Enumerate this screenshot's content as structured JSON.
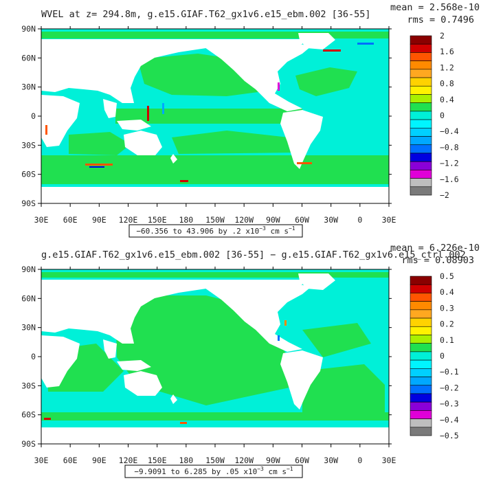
{
  "colors": {
    "land": "#ffffff",
    "frame": "#000000",
    "ocean_main": "#00f0d8",
    "ocean_pos": "#20e050"
  },
  "chart_data": [
    {
      "type": "heatmap",
      "title": "WVEL at z= 294.8m, g.e15.GIAF.T62_gx1v6.e15_ebm.002 [36-55]",
      "mean_text": "mean = 2.568e-10",
      "rms_text": "rms = 0.7496",
      "range_text": "−60.356 to 43.906 by .2 x10",
      "range_exp": "−3",
      "range_unit": " cm s",
      "range_unit_exp": "−1",
      "x_ticks": [
        "30E",
        "60E",
        "90E",
        "120E",
        "150E",
        "180",
        "150W",
        "120W",
        "90W",
        "60W",
        "30W",
        "0",
        "30E"
      ],
      "y_ticks": [
        "90N",
        "60N",
        "30N",
        "0",
        "30S",
        "60S",
        "90S"
      ],
      "colorbar_labels": [
        "2",
        "1.6",
        "1.2",
        "0.8",
        "0.4",
        "0",
        "−0.4",
        "−0.8",
        "−1.2",
        "−1.6",
        "−2"
      ],
      "colorbar_colors": [
        "#8a0000",
        "#d00000",
        "#ff5500",
        "#ff8a00",
        "#ffa820",
        "#ffd200",
        "#fff200",
        "#a8f000",
        "#20e050",
        "#00f0d8",
        "#00f5ff",
        "#00d0ff",
        "#00a8ff",
        "#0070ff",
        "#0000e0",
        "#8a00d8",
        "#e000d8",
        "#bebebe",
        "#7a7a7a"
      ]
    },
    {
      "type": "heatmap",
      "title": "g.e15.GIAF.T62_gx1v6.e15_ebm.002 [36-55] − g.e15.GIAF.T62_gx1v6.e15_ctrl.002",
      "mean_text": "mean = 6.226e-10",
      "rms_text": "rms = 0.08903",
      "range_text": "−9.9091 to 6.285 by .05 x10",
      "range_exp": "−3",
      "range_unit": " cm s",
      "range_unit_exp": "−1",
      "x_ticks": [
        "30E",
        "60E",
        "90E",
        "120E",
        "150E",
        "180",
        "150W",
        "120W",
        "90W",
        "60W",
        "30W",
        "0",
        "30E"
      ],
      "y_ticks": [
        "90N",
        "60N",
        "30N",
        "0",
        "30S",
        "60S",
        "90S"
      ],
      "colorbar_labels": [
        "0.5",
        "0.4",
        "0.3",
        "0.2",
        "0.1",
        "0",
        "−0.1",
        "−0.2",
        "−0.3",
        "−0.4",
        "−0.5"
      ],
      "colorbar_colors": [
        "#8a0000",
        "#d00000",
        "#ff5500",
        "#ff8a00",
        "#ffa820",
        "#ffd200",
        "#fff200",
        "#a8f000",
        "#20e050",
        "#00f0d8",
        "#00f5ff",
        "#00d0ff",
        "#00a8ff",
        "#0070ff",
        "#0000e0",
        "#8a00d8",
        "#e000d8",
        "#bebebe",
        "#7a7a7a"
      ]
    }
  ]
}
